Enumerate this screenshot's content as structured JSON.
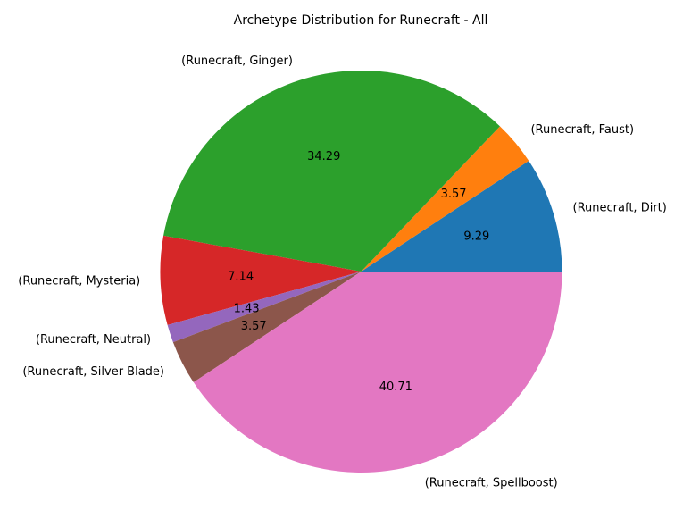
{
  "chart_data": {
    "type": "pie",
    "title": "Archetype Distribution for Runecraft - All",
    "slices": [
      {
        "label": "(Runecraft, Dirt)",
        "value": 9.29,
        "value_label": "9.29",
        "color": "#1f77b4"
      },
      {
        "label": "(Runecraft, Faust)",
        "value": 3.57,
        "value_label": "3.57",
        "color": "#ff7f0e"
      },
      {
        "label": "(Runecraft, Ginger)",
        "value": 34.29,
        "value_label": "34.29",
        "color": "#2ca02c"
      },
      {
        "label": "(Runecraft, Mysteria)",
        "value": 7.14,
        "value_label": "7.14",
        "color": "#d62728"
      },
      {
        "label": "(Runecraft, Neutral)",
        "value": 1.43,
        "value_label": "1.43",
        "color": "#9467bd"
      },
      {
        "label": "(Runecraft, Silver Blade)",
        "value": 3.57,
        "value_label": "3.57",
        "color": "#8c564b"
      },
      {
        "label": "(Runecraft, Spellboost)",
        "value": 40.71,
        "value_label": "40.71",
        "color": "#e377c2"
      }
    ]
  }
}
